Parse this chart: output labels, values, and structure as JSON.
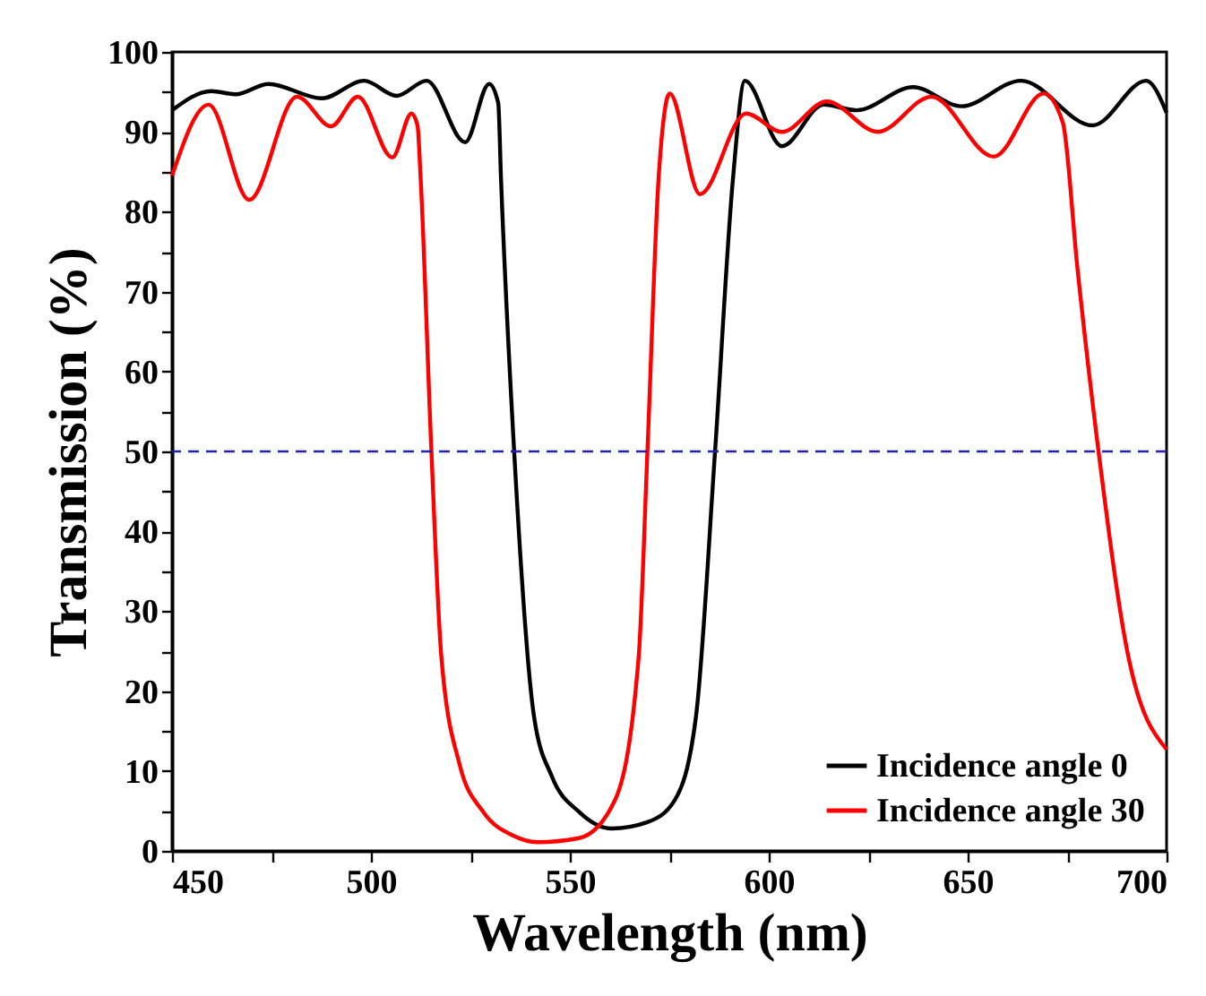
{
  "chart_data": {
    "type": "line",
    "xlabel": "Wavelength (nm)",
    "ylabel": "Transmission (%)",
    "xlim": [
      450,
      700
    ],
    "ylim": [
      0,
      100
    ],
    "xticks": [
      450,
      {
        "value": 475,
        "label": null
      },
      500,
      {
        "value": 525,
        "label": null
      },
      550,
      {
        "value": 575,
        "label": null
      },
      600,
      {
        "value": 625,
        "label": null
      },
      650,
      {
        "value": 675,
        "label": null
      },
      700
    ],
    "yticks": [
      0,
      {
        "value": 5,
        "label": null
      },
      10,
      {
        "value": 15,
        "label": null
      },
      20,
      {
        "value": 25,
        "label": null
      },
      30,
      {
        "value": 35,
        "label": null
      },
      40,
      {
        "value": 45,
        "label": null
      },
      50,
      {
        "value": 55,
        "label": null
      },
      60,
      {
        "value": 65,
        "label": null
      },
      70,
      {
        "value": 75,
        "label": null
      },
      80,
      {
        "value": 85,
        "label": null
      },
      90,
      {
        "value": 95,
        "label": null
      },
      100
    ],
    "legend": "bottom right",
    "ref_lines": [
      {
        "axis": "y",
        "value": 50,
        "color": "#2222aa",
        "line_style": "dashed"
      }
    ],
    "series": [
      {
        "name": "Incidence angle 0",
        "color": "#000000",
        "x": [
          450,
          459.9,
          466,
          474.2,
          487.7,
          498.3,
          506.5,
          514,
          523.7,
          529.7,
          532,
          532.7,
          536,
          541,
          545.5,
          552.3,
          560.5,
          569.5,
          576.3,
          581.7,
          586.5,
          591,
          594,
          603.3,
          613.8,
          622.1,
          636.3,
          648.4,
          663.4,
          681.4,
          694.9,
          700
        ],
        "values": [
          92.7,
          95.1,
          94.7,
          96.0,
          94.2,
          96.4,
          94.5,
          96.4,
          88.7,
          96.0,
          93.6,
          84.1,
          50,
          16.8,
          9.3,
          4.9,
          2.8,
          3.6,
          6.3,
          16.8,
          50,
          84.1,
          96.4,
          88.2,
          93.4,
          92.7,
          95.6,
          93.2,
          96.4,
          90.8,
          96.4,
          92.4
        ]
      },
      {
        "name": "Incidence angle 30",
        "color": "#ff0000",
        "x": [
          450,
          459.2,
          469.4,
          481.4,
          490,
          496.7,
          505.4,
          510.2,
          511.7,
          512.5,
          515.2,
          517.7,
          522.3,
          528.2,
          535.8,
          541.8,
          552.3,
          561.3,
          567.3,
          569.5,
          572.3,
          575.1,
          582.7,
          594.3,
          603.3,
          614.6,
          627.4,
          640.9,
          656.6,
          669.1,
          673.9,
          677.6,
          682.9,
          690.4,
          700
        ],
        "values": [
          84.5,
          93.4,
          81.5,
          94.4,
          90.7,
          94.4,
          86.8,
          92.3,
          90.8,
          84.1,
          50,
          24.3,
          10.8,
          4.9,
          1.9,
          1.1,
          1.6,
          6.3,
          24.3,
          50,
          84.1,
          94.8,
          82.2,
          92.3,
          90,
          93.8,
          90,
          94.4,
          86.9,
          94.8,
          91.2,
          72.9,
          50,
          24.3,
          12.7
        ]
      }
    ]
  }
}
